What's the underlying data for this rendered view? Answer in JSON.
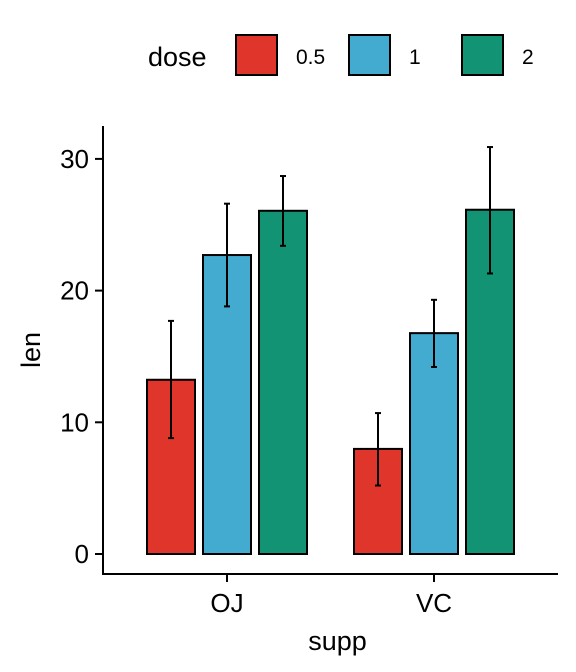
{
  "chart_data": {
    "type": "bar",
    "xlabel": "supp",
    "ylabel": "len",
    "categories": [
      "OJ",
      "VC"
    ],
    "legend": {
      "title": "dose",
      "position": "top"
    },
    "ylim": [
      0,
      32
    ],
    "y_ticks": [
      0,
      10,
      20,
      30
    ],
    "y_tick_labels": [
      "0",
      "10",
      "20",
      "30"
    ],
    "grid": false,
    "series": [
      {
        "name": "0.5",
        "color": "#E0352B",
        "values": [
          13.23,
          7.98
        ],
        "err_low": [
          8.8,
          5.2
        ],
        "err_high": [
          17.7,
          10.7
        ]
      },
      {
        "name": "1",
        "color": "#42ABCF",
        "values": [
          22.7,
          16.77
        ],
        "err_low": [
          18.8,
          14.2
        ],
        "err_high": [
          26.6,
          19.3
        ]
      },
      {
        "name": "2",
        "color": "#129373",
        "values": [
          26.06,
          26.14
        ],
        "err_low": [
          23.4,
          21.3
        ],
        "err_high": [
          28.7,
          30.9
        ]
      }
    ]
  }
}
